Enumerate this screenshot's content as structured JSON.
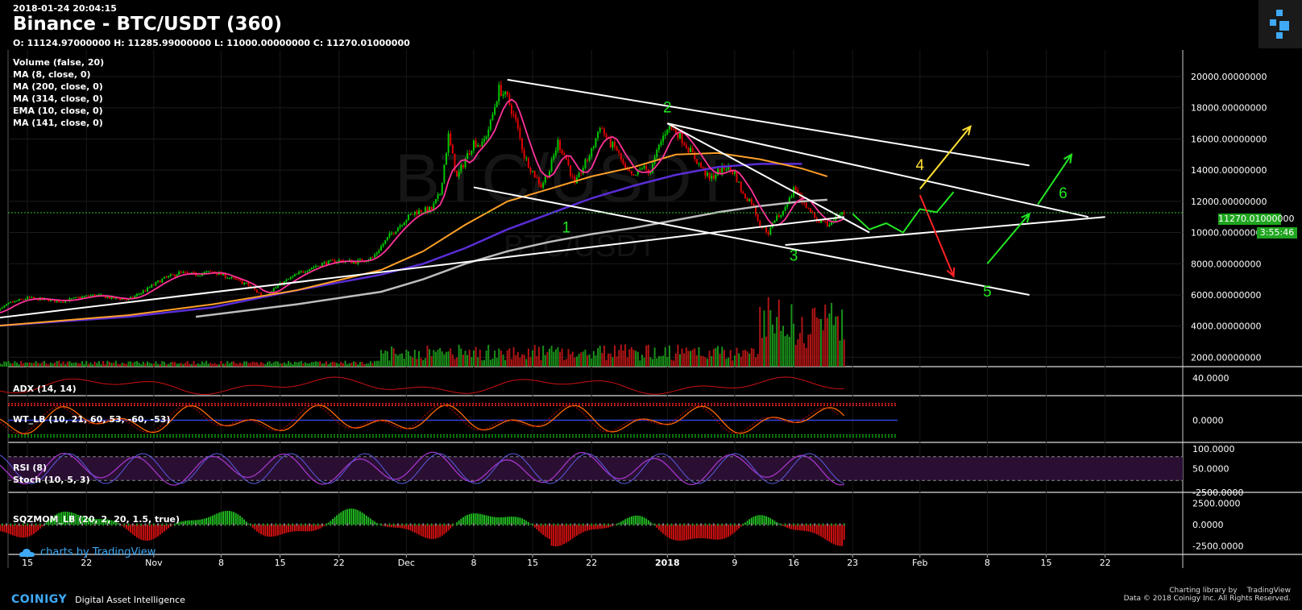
{
  "header": {
    "timestamp": "2018-01-24 20:04:15",
    "title": "Binance - BTC/USDT (360)",
    "ohlc": "O: 11124.97000000 H: 11285.99000000 L: 11000.00000000 C: 11270.01000000"
  },
  "watermark": {
    "pair": "BTC/USDT",
    "sub": "BTC/USDT"
  },
  "legend": [
    "Volume (false, 20)",
    "MA (8, close, 0)",
    "MA (200, close, 0)",
    "MA (314, close, 0)",
    "EMA (10, close, 0)",
    "MA (141, close, 0)"
  ],
  "panes": {
    "adx": "ADX (14, 14)",
    "wt": "WT_LB (10, 21, 60, 53, -60, -53)",
    "rsi": "RSI (8)",
    "stoch": "Stoch (10, 5, 3)",
    "sqz": "SQZMOM_LB (20, 2, 20, 1.5, true)"
  },
  "price_tags": {
    "last": "11270.01000000",
    "countdown": "3:55:46"
  },
  "branding": {
    "tv": "charts by TradingView",
    "coinigy": "COINIGY",
    "coinigy_tag": "Digital Asset Intelligence",
    "lib_text": "Charting library by",
    "lib_brand": "TradingView",
    "copyright": "Data © 2018 Coinigy Inc. All Rights Reserved."
  },
  "colors": {
    "up": "#00c800",
    "down": "#e00000",
    "ma8": "#ff3399",
    "ma200": "#ffa028",
    "ma314": "#5a2dd6",
    "ma141": "#bdbdbd",
    "ema": "#ff3399",
    "wave_green": "#22e622",
    "wave_yellow": "#ffe033",
    "wave_red": "#ff2222"
  },
  "chart_data": {
    "type": "candlestick",
    "title": "Binance - BTC/USDT (360)",
    "x_ticks": [
      "15",
      "22",
      "Nov",
      "8",
      "15",
      "22",
      "Dec",
      "8",
      "15",
      "22",
      "2018",
      "9",
      "16",
      "23",
      "Feb",
      "8",
      "15",
      "22"
    ],
    "x_tick_pos": [
      -2,
      5,
      13,
      21,
      28,
      35,
      43,
      51,
      58,
      65,
      74,
      82,
      89,
      96,
      104,
      112,
      119,
      126
    ],
    "main": {
      "ylim": [
        1400,
        21500
      ],
      "y_ticks": [
        20000,
        18000,
        16000,
        14000,
        12000,
        10000,
        8000,
        6000,
        4000,
        2000
      ],
      "close_path": [
        [
          -6,
          4800
        ],
        [
          -4,
          5500
        ],
        [
          -2,
          5800
        ],
        [
          0,
          5700
        ],
        [
          2,
          5600
        ],
        [
          4,
          5800
        ],
        [
          6,
          6000
        ],
        [
          8,
          5800
        ],
        [
          10,
          5700
        ],
        [
          12,
          6300
        ],
        [
          14,
          7000
        ],
        [
          16,
          7400
        ],
        [
          18,
          7300
        ],
        [
          20,
          7500
        ],
        [
          22,
          7100
        ],
        [
          24,
          6700
        ],
        [
          26,
          5900
        ],
        [
          27,
          6300
        ],
        [
          29,
          7000
        ],
        [
          31,
          7600
        ],
        [
          33,
          8000
        ],
        [
          35,
          8200
        ],
        [
          37,
          8100
        ],
        [
          39,
          8400
        ],
        [
          41,
          9800
        ],
        [
          43,
          10900
        ],
        [
          44,
          11300
        ],
        [
          46,
          11500
        ],
        [
          47,
          12500
        ],
        [
          48,
          16200
        ],
        [
          49,
          13500
        ],
        [
          50,
          14700
        ],
        [
          51,
          15800
        ],
        [
          52,
          15600
        ],
        [
          53,
          17000
        ],
        [
          54,
          19200
        ],
        [
          55,
          18600
        ],
        [
          56,
          17100
        ],
        [
          57,
          14900
        ],
        [
          58,
          13900
        ],
        [
          59,
          13000
        ],
        [
          60,
          14000
        ],
        [
          61,
          15800
        ],
        [
          62,
          14700
        ],
        [
          63,
          13000
        ],
        [
          64,
          14200
        ],
        [
          65,
          15200
        ],
        [
          66,
          16900
        ],
        [
          67,
          15800
        ],
        [
          68,
          15300
        ],
        [
          69,
          14000
        ],
        [
          70,
          13500
        ],
        [
          71,
          14200
        ],
        [
          72,
          13900
        ],
        [
          73,
          15500
        ],
        [
          74,
          16800
        ],
        [
          75,
          16500
        ],
        [
          76,
          15800
        ],
        [
          77,
          15000
        ],
        [
          78,
          14200
        ],
        [
          79,
          13400
        ],
        [
          80,
          13900
        ],
        [
          81,
          14200
        ],
        [
          82,
          13800
        ],
        [
          83,
          12400
        ],
        [
          84,
          12000
        ],
        [
          85,
          10500
        ],
        [
          86,
          10000
        ],
        [
          87,
          11000
        ],
        [
          88,
          11500
        ],
        [
          89,
          12800
        ],
        [
          90,
          12000
        ],
        [
          91,
          11300
        ],
        [
          92,
          10700
        ],
        [
          93,
          10500
        ],
        [
          94,
          10900
        ],
        [
          95,
          11270
        ]
      ],
      "volume": {
        "ylim": [
          0,
          10000
        ],
        "base_value": 1500
      },
      "moving_averages": {
        "ma200": [
          [
            -6,
            4000
          ],
          [
            10,
            4700
          ],
          [
            20,
            5400
          ],
          [
            30,
            6300
          ],
          [
            40,
            7600
          ],
          [
            45,
            8800
          ],
          [
            50,
            10500
          ],
          [
            55,
            12000
          ],
          [
            60,
            12800
          ],
          [
            65,
            13600
          ],
          [
            70,
            14200
          ],
          [
            75,
            15000
          ],
          [
            80,
            15100
          ],
          [
            85,
            14700
          ],
          [
            90,
            14100
          ],
          [
            93,
            13600
          ]
        ],
        "ma314": [
          [
            -6,
            4000
          ],
          [
            10,
            4600
          ],
          [
            20,
            5200
          ],
          [
            30,
            6300
          ],
          [
            40,
            7300
          ],
          [
            45,
            8000
          ],
          [
            50,
            9000
          ],
          [
            55,
            10200
          ],
          [
            60,
            11200
          ],
          [
            65,
            12200
          ],
          [
            70,
            13000
          ],
          [
            75,
            13700
          ],
          [
            80,
            14200
          ],
          [
            85,
            14400
          ],
          [
            90,
            14400
          ]
        ],
        "ma141": [
          [
            18,
            4600
          ],
          [
            30,
            5400
          ],
          [
            40,
            6200
          ],
          [
            45,
            7000
          ],
          [
            50,
            8000
          ],
          [
            55,
            8800
          ],
          [
            60,
            9400
          ],
          [
            65,
            9900
          ],
          [
            70,
            10300
          ],
          [
            75,
            10800
          ],
          [
            80,
            11300
          ],
          [
            85,
            11700
          ],
          [
            90,
            12000
          ],
          [
            93,
            12100
          ]
        ]
      },
      "trendlines": [
        [
          [
            -6,
            4500
          ],
          [
            95,
            11000
          ]
        ],
        [
          [
            51,
            12900
          ],
          [
            117,
            6000
          ]
        ],
        [
          [
            55,
            19800
          ],
          [
            117,
            14300
          ]
        ],
        [
          [
            74,
            17000
          ],
          [
            98,
            10000
          ]
        ],
        [
          [
            88,
            9200
          ],
          [
            126,
            11000
          ]
        ],
        [
          [
            74,
            17000
          ],
          [
            124,
            11000
          ]
        ]
      ],
      "wave_labels": [
        {
          "text": "1",
          "x": 62,
          "y": 10000,
          "color": "#22e622"
        },
        {
          "text": "2",
          "x": 74,
          "y": 17700,
          "color": "#22e622"
        },
        {
          "text": "3",
          "x": 89,
          "y": 8200,
          "color": "#22e622"
        },
        {
          "text": "4",
          "x": 104,
          "y": 14000,
          "color": "#ffe033"
        },
        {
          "text": "5",
          "x": 112,
          "y": 5900,
          "color": "#22e622"
        },
        {
          "text": "6",
          "x": 121,
          "y": 12200,
          "color": "#22e622"
        }
      ],
      "projection": [
        [
          96,
          11200
        ],
        [
          98,
          10200
        ],
        [
          100,
          10600
        ],
        [
          102,
          10000
        ],
        [
          104,
          11500
        ],
        [
          106,
          11300
        ],
        [
          108,
          12600
        ]
      ],
      "arrows": [
        {
          "from": [
            104,
            12800
          ],
          "to": [
            110,
            16800
          ],
          "color": "#ffe033"
        },
        {
          "from": [
            104,
            12400
          ],
          "to": [
            108,
            7200
          ],
          "color": "#ff2222"
        },
        {
          "from": [
            112,
            8000
          ],
          "to": [
            117,
            11200
          ],
          "color": "#22e622"
        },
        {
          "from": [
            118,
            11800
          ],
          "to": [
            122,
            15000
          ],
          "color": "#22e622"
        }
      ]
    },
    "adx": {
      "ylim": [
        0,
        60
      ],
      "y_ticks": [
        40
      ]
    },
    "wt": {
      "ylim": [
        -80,
        80
      ],
      "y_ticks": [
        0
      ]
    },
    "rsi": {
      "ylim": [
        -10,
        110
      ],
      "y_ticks": [
        100,
        50,
        -2500
      ]
    },
    "sqz": {
      "ylim": [
        -3500,
        3500
      ],
      "y_ticks": [
        2500,
        0,
        -2500
      ]
    }
  }
}
